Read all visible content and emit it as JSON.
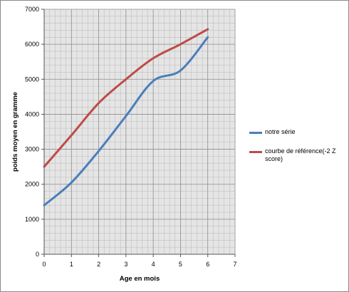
{
  "chart_data": {
    "type": "line",
    "title": "",
    "xlabel": "Age en mois",
    "ylabel": "poids moyen en gramme",
    "xlim": [
      0,
      7
    ],
    "ylim": [
      0,
      7000
    ],
    "x_ticks": [
      "0",
      "1",
      "2",
      "3",
      "4",
      "5",
      "6",
      "7"
    ],
    "y_ticks": [
      "0",
      "1000",
      "2000",
      "3000",
      "4000",
      "5000",
      "6000",
      "7000"
    ],
    "grid": true,
    "legend_position": "right",
    "series": [
      {
        "name": "notre série",
        "color": "#4a7ebb",
        "x": [
          0,
          1,
          2,
          3,
          4,
          5,
          6
        ],
        "values": [
          1400,
          2050,
          2950,
          3950,
          4950,
          5250,
          6200
        ]
      },
      {
        "name": "courbe de référence(-2 Z score)",
        "color": "#be4b48",
        "x": [
          0,
          1,
          2,
          3,
          4,
          5,
          6
        ],
        "values": [
          2500,
          3400,
          4320,
          5000,
          5600,
          6000,
          6430
        ]
      }
    ]
  },
  "colors": {
    "plot_background": "#e5e5e5",
    "grid_line": "#8c8c8c",
    "minor_grid_line": "#bfbfbf"
  }
}
